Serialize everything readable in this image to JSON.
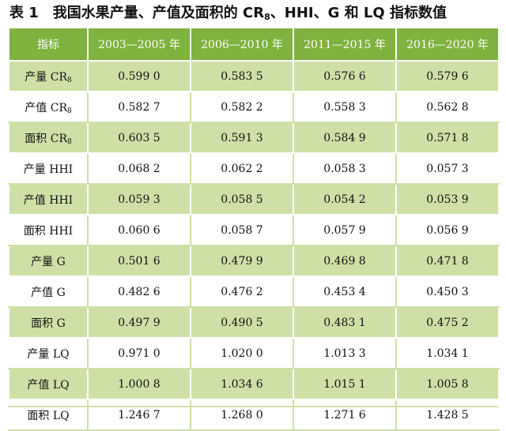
{
  "title": {
    "label": "表 1",
    "text_main": "我国水果产量、产值及面积的 CR",
    "text_sub": "8",
    "text_tail": "、HHI、G 和 LQ 指标数值"
  },
  "table": {
    "headers": [
      "指标",
      "2003—2005 年",
      "2006—2010 年",
      "2011—2015 年",
      "2016—2020 年"
    ],
    "rows": [
      {
        "label": "产量 CR",
        "sub": "8",
        "values": [
          "0.599 0",
          "0.583 5",
          "0.576 6",
          "0.579 6"
        ]
      },
      {
        "label": "产值 CR",
        "sub": "8",
        "values": [
          "0.582 7",
          "0.582 2",
          "0.558 3",
          "0.562 8"
        ]
      },
      {
        "label": "面积 CR",
        "sub": "8",
        "values": [
          "0.603 5",
          "0.591 3",
          "0.584 9",
          "0.571 8"
        ]
      },
      {
        "label": "产量 HHI",
        "sub": "",
        "values": [
          "0.068 2",
          "0.062 2",
          "0.058 3",
          "0.057 3"
        ]
      },
      {
        "label": "产值 HHI",
        "sub": "",
        "values": [
          "0.059 3",
          "0.058 5",
          "0.054 2",
          "0.053 9"
        ]
      },
      {
        "label": "面积 HHI",
        "sub": "",
        "values": [
          "0.060 6",
          "0.058 7",
          "0.057 9",
          "0.056 9"
        ]
      },
      {
        "label": "产量 G",
        "sub": "",
        "values": [
          "0.501 6",
          "0.479 9",
          "0.469 8",
          "0.471 8"
        ]
      },
      {
        "label": "产值 G",
        "sub": "",
        "values": [
          "0.482 6",
          "0.476 2",
          "0.453 4",
          "0.450 3"
        ]
      },
      {
        "label": "面积 G",
        "sub": "",
        "values": [
          "0.497 9",
          "0.490 5",
          "0.483 1",
          "0.475 2"
        ]
      },
      {
        "label": "产量 LQ",
        "sub": "",
        "values": [
          "0.971 0",
          "1.020 0",
          "1.013 3",
          "1.034 1"
        ]
      },
      {
        "label": "产值 LQ",
        "sub": "",
        "values": [
          "1.000 8",
          "1.034 6",
          "1.015 1",
          "1.005 8"
        ]
      },
      {
        "label": "面积 LQ",
        "sub": "",
        "values": [
          "1.246 7",
          "1.268 0",
          "1.271 6",
          "1.428 5"
        ]
      }
    ]
  },
  "colors": {
    "header_bg": "#7fb23f",
    "shaded_row_bg": "#cfe0a6",
    "text": "#111111"
  }
}
